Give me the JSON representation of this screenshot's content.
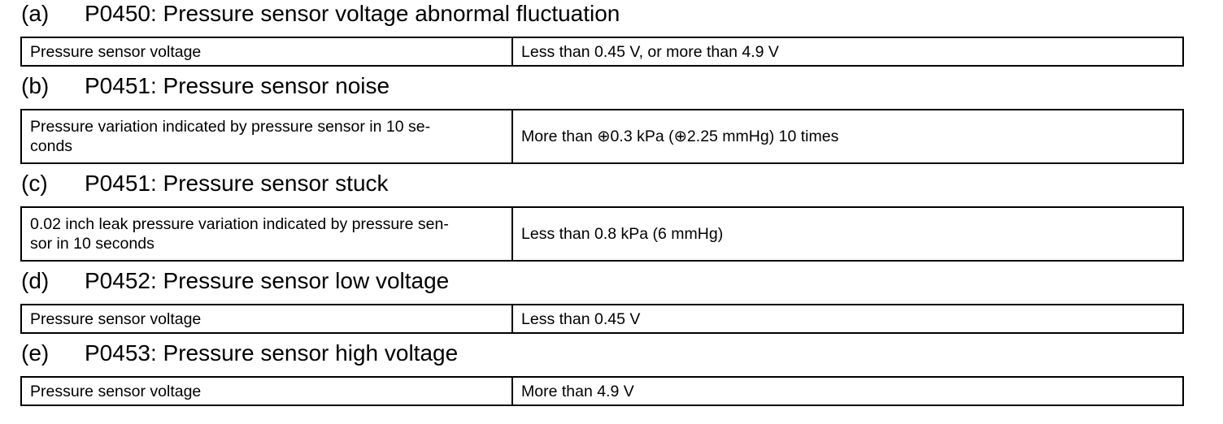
{
  "sections": [
    {
      "letter": "(a)",
      "title": "P0450: Pressure sensor voltage abnormal fluctuation",
      "condition": "Pressure sensor voltage",
      "threshold": "Less than 0.45 V, or more than 4.9 V"
    },
    {
      "letter": "(b)",
      "title": "P0451: Pressure sensor noise",
      "condition": "Pressure variation indicated by pressure sensor in 10 se-\nconds",
      "threshold": "More than ⊕0.3 kPa (⊕2.25 mmHg) 10 times"
    },
    {
      "letter": "(c)",
      "title": "P0451: Pressure sensor stuck",
      "condition": "0.02 inch leak pressure variation indicated by pressure sen-\nsor in 10 seconds",
      "threshold": "Less than 0.8 kPa (6 mmHg)"
    },
    {
      "letter": "(d)",
      "title": "P0452: Pressure sensor low voltage",
      "condition": "Pressure sensor voltage",
      "threshold": "Less than 0.45 V"
    },
    {
      "letter": "(e)",
      "title": "P0453: Pressure sensor high voltage",
      "condition": "Pressure sensor voltage",
      "threshold": "More than 4.9 V"
    }
  ]
}
